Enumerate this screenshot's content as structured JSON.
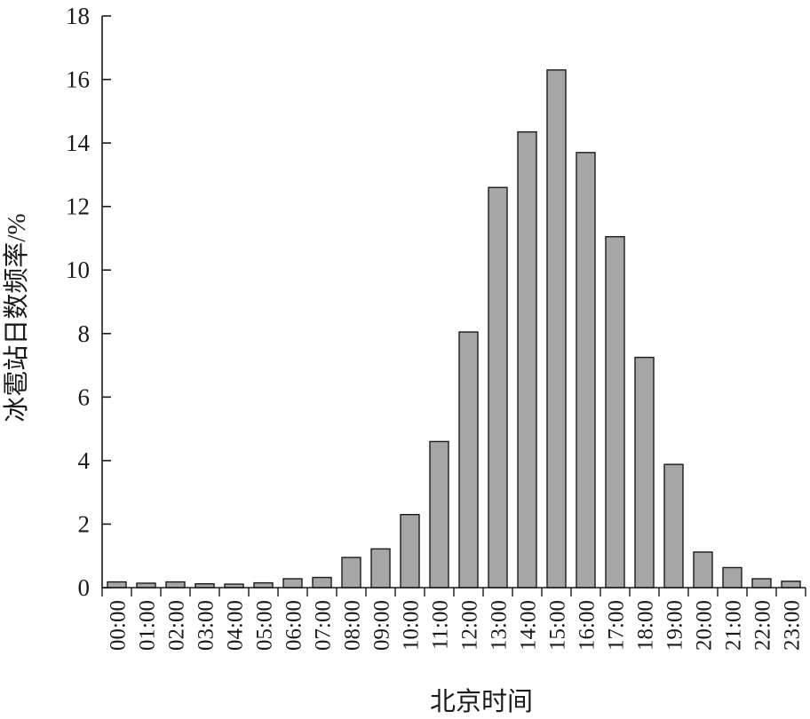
{
  "chart_data": {
    "type": "bar",
    "xlabel": "北京时间",
    "ylabel": "冰雹站日数频率/%",
    "ylim": [
      0,
      18
    ],
    "yticks": [
      0,
      2,
      4,
      6,
      8,
      10,
      12,
      14,
      16,
      18
    ],
    "categories": [
      "00:00",
      "01:00",
      "02:00",
      "03:00",
      "04:00",
      "05:00",
      "06:00",
      "07:00",
      "08:00",
      "09:00",
      "10:00",
      "11:00",
      "12:00",
      "13:00",
      "14:00",
      "15:00",
      "16:00",
      "17:00",
      "18:00",
      "19:00",
      "20:00",
      "21:00",
      "22:00",
      "23:00"
    ],
    "values": [
      0.18,
      0.14,
      0.18,
      0.12,
      0.11,
      0.15,
      0.28,
      0.32,
      0.95,
      1.22,
      2.3,
      4.6,
      8.05,
      12.6,
      14.35,
      16.3,
      13.7,
      11.05,
      7.25,
      3.88,
      1.12,
      0.63,
      0.28,
      0.2
    ],
    "bar_color": "#a6a6a6",
    "bar_edge_color": "#1a1a1a"
  }
}
